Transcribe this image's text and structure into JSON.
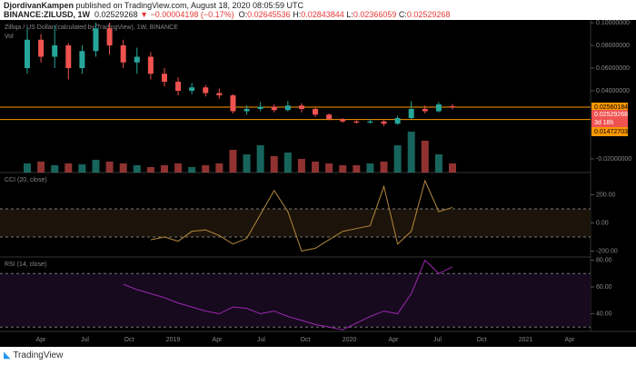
{
  "header": {
    "author": "DjordivanKampen",
    "published": "published on TradingView.com, August 18, 2020 08:05:59 UTC",
    "symbol": "BINANCE:ZILUSD, 1W",
    "last": "0.02529268",
    "change": "−0.00004198 (−0.17%)",
    "ohlc": [
      {
        "label": "O:",
        "value": "0.02645536"
      },
      {
        "label": "H:",
        "value": "0.02843844"
      },
      {
        "label": "L:",
        "value": "0.02366059"
      },
      {
        "label": "C:",
        "value": "0.02529268"
      }
    ]
  },
  "chart_data": [
    {
      "type": "candlestick",
      "title": "Zilliqa / US Dollar (calculated by TradingView), 1W, BINANCE",
      "volume_label": "Vol",
      "open": [
        0.06,
        0.085,
        0.07,
        0.08,
        0.06,
        0.075,
        0.095,
        0.08,
        0.065,
        0.07,
        0.055,
        0.048,
        0.04,
        0.043,
        0.038,
        0.036,
        0.022,
        0.024,
        0.026,
        0.023,
        0.027,
        0.024,
        0.019,
        0.015,
        0.013,
        0.012,
        0.013,
        0.011,
        0.016,
        0.024,
        0.022,
        0.02645536
      ],
      "high": [
        0.095,
        0.09,
        0.098,
        0.082,
        0.08,
        0.1,
        0.1,
        0.085,
        0.078,
        0.074,
        0.06,
        0.052,
        0.047,
        0.045,
        0.042,
        0.037,
        0.027,
        0.03,
        0.028,
        0.031,
        0.029,
        0.025,
        0.02,
        0.016,
        0.014,
        0.015,
        0.014,
        0.018,
        0.031,
        0.027,
        0.03,
        0.02843844
      ],
      "low": [
        0.055,
        0.065,
        0.06,
        0.05,
        0.055,
        0.07,
        0.072,
        0.06,
        0.055,
        0.05,
        0.044,
        0.036,
        0.037,
        0.035,
        0.033,
        0.02,
        0.019,
        0.022,
        0.021,
        0.022,
        0.021,
        0.017,
        0.014,
        0.012,
        0.011,
        0.011,
        0.009,
        0.01,
        0.015,
        0.02,
        0.021,
        0.02366059
      ],
      "close": [
        0.085,
        0.07,
        0.08,
        0.06,
        0.075,
        0.095,
        0.08,
        0.065,
        0.07,
        0.055,
        0.048,
        0.04,
        0.043,
        0.038,
        0.036,
        0.022,
        0.024,
        0.026,
        0.023,
        0.027,
        0.024,
        0.019,
        0.015,
        0.013,
        0.012,
        0.013,
        0.011,
        0.016,
        0.024,
        0.022,
        0.028,
        0.02529268
      ],
      "volume": [
        20,
        24,
        16,
        20,
        18,
        28,
        24,
        20,
        16,
        12,
        16,
        20,
        12,
        16,
        20,
        50,
        40,
        60,
        36,
        44,
        30,
        24,
        20,
        16,
        16,
        20,
        24,
        60,
        90,
        70,
        40,
        20
      ],
      "up_color": "#26a69a",
      "down_color": "#ef5350",
      "ylim": [
        -0.032,
        0.1024
      ],
      "yticks": [
        {
          "value": 0.1,
          "label": "0.10000000"
        },
        {
          "value": 0.08,
          "label": "0.08000000"
        },
        {
          "value": 0.06,
          "label": "0.06000000"
        },
        {
          "value": 0.04,
          "label": "0.04000000"
        },
        {
          "value": -0.02,
          "label": "-0.02000000"
        }
      ],
      "levels": [
        {
          "value": 0.02560184,
          "color": "#ff9800"
        },
        {
          "value": 0.01472703,
          "color": "#ff9800"
        }
      ],
      "last_price": 0.02529268,
      "countdown": "3d 18h",
      "x_labels": [
        "Apr",
        "Jul",
        "Oct",
        "2019",
        "Apr",
        "Jul",
        "Oct",
        "2020",
        "Apr",
        "Jul",
        "Oct",
        "2021",
        "Apr"
      ]
    },
    {
      "type": "line",
      "title": "CCI (20, close)",
      "color": "#b5893c",
      "values": [
        null,
        null,
        null,
        null,
        null,
        null,
        null,
        null,
        null,
        -120,
        -100,
        -130,
        -60,
        -50,
        -90,
        -150,
        -110,
        60,
        230,
        80,
        -200,
        -180,
        -120,
        -60,
        -40,
        -20,
        260,
        -150,
        -60,
        300,
        80,
        110
      ],
      "ylim": [
        -242,
        358
      ],
      "yticks": [
        {
          "value": 200,
          "label": "200.00"
        },
        {
          "value": 0,
          "label": "0.00"
        },
        {
          "value": -200,
          "label": "-200.00"
        }
      ],
      "band": [
        -100,
        100
      ]
    },
    {
      "type": "line",
      "title": "RSI (14, close)",
      "color": "#9c27b0",
      "values": [
        null,
        null,
        null,
        null,
        null,
        null,
        null,
        62,
        58,
        55,
        52,
        48,
        45,
        42,
        40,
        45,
        44,
        40,
        42,
        38,
        35,
        32,
        30,
        28,
        33,
        38,
        42,
        40,
        55,
        80,
        70,
        75
      ],
      "ylim": [
        26.8,
        82.4
      ],
      "yticks": [
        {
          "value": 80,
          "label": "80.00"
        },
        {
          "value": 60,
          "label": "60.00"
        },
        {
          "value": 40,
          "label": "40.00"
        }
      ],
      "band": [
        30,
        70
      ]
    }
  ]
}
